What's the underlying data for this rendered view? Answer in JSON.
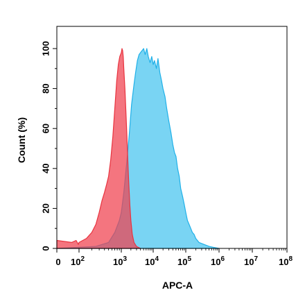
{
  "chart_data": {
    "type": "area",
    "title": "",
    "xlabel": "APC-A",
    "ylabel": "Count (%)",
    "x_scale": "log",
    "xlim": [
      0,
      100000000
    ],
    "ylim": [
      0,
      108
    ],
    "grid": false,
    "legend": "none",
    "x_ticks": [
      {
        "value": 0,
        "base": "0",
        "exp": ""
      },
      {
        "value": 100,
        "base": "10",
        "exp": "2"
      },
      {
        "value": 1000,
        "base": "10",
        "exp": "3"
      },
      {
        "value": 10000,
        "base": "10",
        "exp": "4"
      },
      {
        "value": 100000,
        "base": "10",
        "exp": "5"
      },
      {
        "value": 1000000,
        "base": "10",
        "exp": "6"
      },
      {
        "value": 10000000,
        "base": "10",
        "exp": "7"
      },
      {
        "value": 100000000,
        "base": "10",
        "exp": "8"
      }
    ],
    "y_ticks": [
      {
        "value": 0,
        "label": "0"
      },
      {
        "value": 20,
        "label": "20"
      },
      {
        "value": 40,
        "label": "40"
      },
      {
        "value": 60,
        "label": "60"
      },
      {
        "value": 80,
        "label": "80"
      },
      {
        "value": 100,
        "label": "100"
      }
    ],
    "series": [
      {
        "fill": "#f0404e",
        "fill_opacity": 0.72,
        "stroke": "#e8333f",
        "points": [
          [
            0,
            4
          ],
          [
            10,
            3
          ],
          [
            40,
            4
          ],
          [
            80,
            2
          ],
          [
            100,
            3
          ],
          [
            150,
            5
          ],
          [
            200,
            8
          ],
          [
            250,
            12
          ],
          [
            300,
            18
          ],
          [
            350,
            24
          ],
          [
            400,
            28
          ],
          [
            450,
            32
          ],
          [
            500,
            36
          ],
          [
            560,
            44
          ],
          [
            630,
            56
          ],
          [
            700,
            70
          ],
          [
            780,
            84
          ],
          [
            850,
            92
          ],
          [
            920,
            96
          ],
          [
            1000,
            98
          ],
          [
            1050,
            100
          ],
          [
            1100,
            99
          ],
          [
            1150,
            96
          ],
          [
            1200,
            90
          ],
          [
            1300,
            80
          ],
          [
            1400,
            68
          ],
          [
            1500,
            56
          ],
          [
            1600,
            44
          ],
          [
            1700,
            34
          ],
          [
            1850,
            22
          ],
          [
            2000,
            14
          ],
          [
            2200,
            7
          ],
          [
            2500,
            3
          ],
          [
            3000,
            1
          ],
          [
            4000,
            0
          ]
        ]
      },
      {
        "fill": "#45c4ee",
        "fill_opacity": 0.72,
        "stroke": "#1fb0e8",
        "points": [
          [
            0,
            0
          ],
          [
            250,
            1
          ],
          [
            500,
            3
          ],
          [
            700,
            8
          ],
          [
            900,
            14
          ],
          [
            1000,
            18
          ],
          [
            1200,
            28
          ],
          [
            1500,
            44
          ],
          [
            1800,
            58
          ],
          [
            2100,
            72
          ],
          [
            2500,
            82
          ],
          [
            2800,
            88
          ],
          [
            3200,
            94
          ],
          [
            3600,
            97
          ],
          [
            4000,
            98
          ],
          [
            4500,
            99
          ],
          [
            5000,
            100
          ],
          [
            5600,
            97
          ],
          [
            6300,
            100
          ],
          [
            7000,
            96
          ],
          [
            8000,
            93
          ],
          [
            9000,
            96
          ],
          [
            10000,
            92
          ],
          [
            11000,
            94
          ],
          [
            12500,
            90
          ],
          [
            14000,
            95
          ],
          [
            16000,
            88
          ],
          [
            18000,
            84
          ],
          [
            20000,
            80
          ],
          [
            23000,
            76
          ],
          [
            26000,
            70
          ],
          [
            30000,
            64
          ],
          [
            35000,
            58
          ],
          [
            40000,
            52
          ],
          [
            45000,
            48
          ],
          [
            50000,
            46
          ],
          [
            56000,
            40
          ],
          [
            63000,
            36
          ],
          [
            70000,
            30
          ],
          [
            80000,
            26
          ],
          [
            90000,
            22
          ],
          [
            100000,
            18
          ],
          [
            112000,
            14
          ],
          [
            126000,
            12
          ],
          [
            141000,
            10
          ],
          [
            158000,
            8
          ],
          [
            178000,
            7
          ],
          [
            200000,
            5
          ],
          [
            250000,
            3
          ],
          [
            350000,
            2
          ],
          [
            500000,
            1
          ],
          [
            700000,
            0.5
          ],
          [
            1000000,
            0
          ]
        ]
      }
    ]
  }
}
